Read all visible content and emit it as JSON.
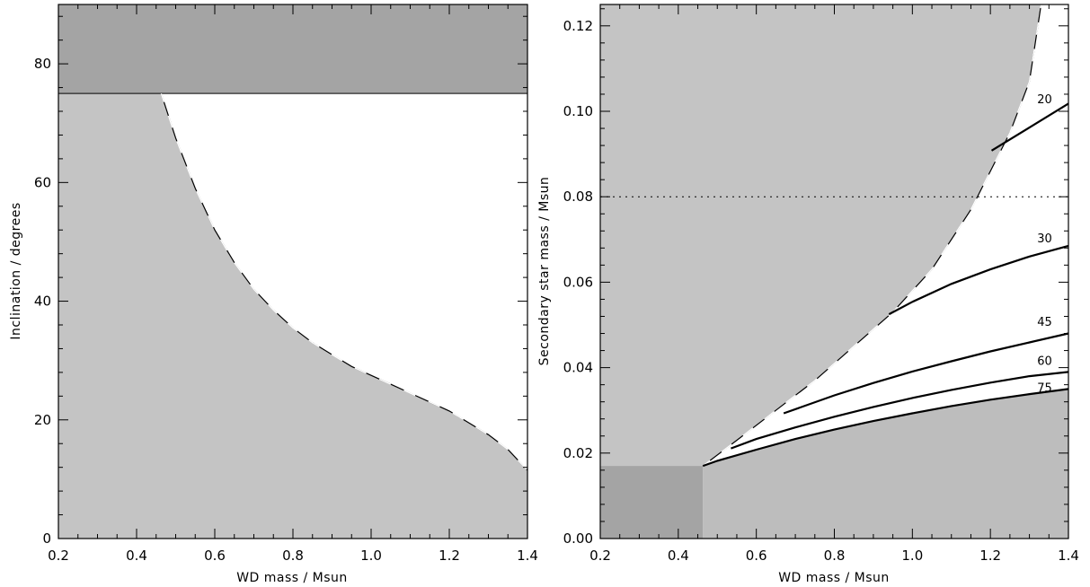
{
  "chart_data": [
    {
      "type": "area",
      "xlabel": "WD mass / Msun",
      "ylabel": "Inclination / degrees",
      "xlim": [
        0.2,
        1.4
      ],
      "ylim": [
        0,
        90
      ],
      "xticks": [
        0.2,
        0.4,
        0.6,
        0.8,
        1.0,
        1.2,
        1.4
      ],
      "yticks": [
        0,
        20,
        40,
        60,
        80
      ],
      "excluded_band": {
        "y_from": 75,
        "y_to": 90,
        "color": "#a4a4a4"
      },
      "boundary_curve": {
        "x": [
          0.463,
          0.5,
          0.55,
          0.6,
          0.65,
          0.7,
          0.75,
          0.8,
          0.85,
          0.9,
          0.95,
          1.0,
          1.05,
          1.1,
          1.15,
          1.2,
          1.25,
          1.3,
          1.35,
          1.4
        ],
        "y": [
          75,
          67.5,
          59,
          52,
          46.5,
          42,
          38.5,
          35.5,
          33,
          31,
          29,
          27.5,
          26,
          24.5,
          23,
          21.5,
          19.5,
          17.5,
          15,
          11.5
        ]
      },
      "region_color": "#c4c4c4"
    },
    {
      "type": "line",
      "xlabel": "WD mass / Msun",
      "ylabel": "Secondary star mass / Msun",
      "xlim": [
        0.2,
        1.4
      ],
      "ylim": [
        0,
        0.125
      ],
      "xticks": [
        0.2,
        0.4,
        0.6,
        0.8,
        1.0,
        1.2,
        1.4
      ],
      "yticks": [
        0.0,
        0.02,
        0.04,
        0.06,
        0.08,
        0.1,
        0.12
      ],
      "ytick_labels": [
        "0.00",
        "0.02",
        "0.04",
        "0.06",
        "0.08",
        "0.10",
        "0.12"
      ],
      "reference_line": {
        "y": 0.08,
        "style": "dotted"
      },
      "corner_block": {
        "x_from": 0.2,
        "x_to": 0.463,
        "y_from": 0,
        "y_to": 0.017,
        "color": "#a4a4a4"
      },
      "boundary_curve": {
        "x": [
          0.463,
          0.55,
          0.65,
          0.75,
          0.85,
          0.95,
          1.05,
          1.15,
          1.25,
          1.3,
          1.33
        ],
        "y": [
          0.017,
          0.023,
          0.03,
          0.037,
          0.045,
          0.053,
          0.063,
          0.077,
          0.095,
          0.107,
          0.125
        ]
      },
      "series": [
        {
          "name": "20",
          "x": [
            1.203,
            1.3,
            1.4
          ],
          "y": [
            0.0908,
            0.0962,
            0.1018
          ],
          "label_at": [
            1.32,
            0.101
          ]
        },
        {
          "name": "30",
          "x": [
            0.94,
            1.0,
            1.1,
            1.2,
            1.3,
            1.4
          ],
          "y": [
            0.0525,
            0.0554,
            0.0596,
            0.063,
            0.066,
            0.0685
          ],
          "label_at": [
            1.32,
            0.0685
          ]
        },
        {
          "name": "45",
          "x": [
            0.67,
            0.8,
            0.9,
            1.0,
            1.1,
            1.2,
            1.3,
            1.4
          ],
          "y": [
            0.0293,
            0.0335,
            0.0364,
            0.0391,
            0.0415,
            0.0438,
            0.0459,
            0.048
          ],
          "label_at": [
            1.32,
            0.049
          ]
        },
        {
          "name": "60",
          "x": [
            0.535,
            0.6,
            0.7,
            0.8,
            0.9,
            1.0,
            1.1,
            1.2,
            1.3,
            1.4
          ],
          "y": [
            0.0211,
            0.0233,
            0.026,
            0.0285,
            0.0308,
            0.0329,
            0.0348,
            0.0365,
            0.038,
            0.039
          ],
          "label_at": [
            1.32,
            0.0398
          ]
        },
        {
          "name": "75",
          "x": [
            0.463,
            0.5,
            0.6,
            0.7,
            0.8,
            0.9,
            1.0,
            1.1,
            1.2,
            1.3,
            1.4
          ],
          "y": [
            0.017,
            0.0182,
            0.0208,
            0.0233,
            0.0255,
            0.0275,
            0.0293,
            0.031,
            0.0325,
            0.0338,
            0.035
          ],
          "label_at": [
            1.32,
            0.0335
          ]
        }
      ],
      "region_color": "#c4c4c4",
      "lower_region_color": "#bdbdbd"
    }
  ]
}
